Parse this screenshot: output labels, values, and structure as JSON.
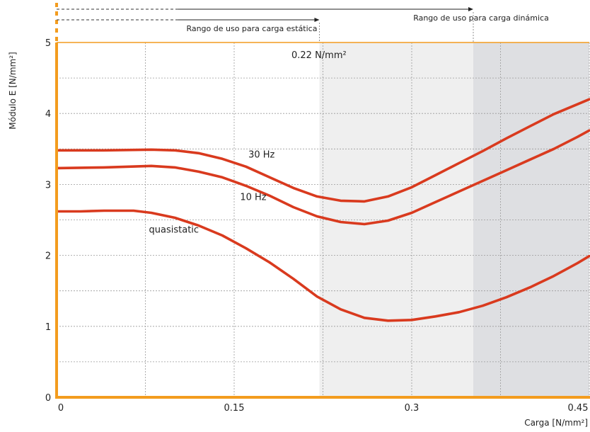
{
  "chart_data": {
    "type": "line",
    "xlabel": "Carga  [N/mm²]",
    "ylabel": "Módulo E [N/mm²]",
    "xlim": [
      0,
      0.45
    ],
    "ylim": [
      0,
      5
    ],
    "x_ticks": [
      {
        "value": 0,
        "label": "0"
      },
      {
        "value": 0.15,
        "label": "0.15"
      },
      {
        "value": 0.3,
        "label": "0.3"
      },
      {
        "value": 0.45,
        "label": "0.45"
      }
    ],
    "y_ticks": [
      {
        "value": 0,
        "label": "0"
      },
      {
        "value": 1,
        "label": "1"
      },
      {
        "value": 2,
        "label": "2"
      },
      {
        "value": 3,
        "label": "3"
      },
      {
        "value": 4,
        "label": "4"
      },
      {
        "value": 5,
        "label": "5"
      }
    ],
    "grid": true,
    "series": [
      {
        "name": "30 Hz",
        "color": "#d93a1e",
        "points": [
          [
            0,
            3.48
          ],
          [
            0.04,
            3.48
          ],
          [
            0.08,
            3.49
          ],
          [
            0.1,
            3.48
          ],
          [
            0.12,
            3.44
          ],
          [
            0.14,
            3.36
          ],
          [
            0.16,
            3.25
          ],
          [
            0.18,
            3.1
          ],
          [
            0.2,
            2.95
          ],
          [
            0.22,
            2.83
          ],
          [
            0.24,
            2.77
          ],
          [
            0.26,
            2.76
          ],
          [
            0.28,
            2.83
          ],
          [
            0.3,
            2.96
          ],
          [
            0.32,
            3.13
          ],
          [
            0.34,
            3.3
          ],
          [
            0.36,
            3.47
          ],
          [
            0.38,
            3.65
          ],
          [
            0.4,
            3.82
          ],
          [
            0.42,
            3.99
          ],
          [
            0.44,
            4.13
          ],
          [
            0.45,
            4.2
          ]
        ]
      },
      {
        "name": "10 Hz",
        "color": "#d93a1e",
        "points": [
          [
            0,
            3.23
          ],
          [
            0.04,
            3.24
          ],
          [
            0.08,
            3.26
          ],
          [
            0.1,
            3.24
          ],
          [
            0.12,
            3.18
          ],
          [
            0.14,
            3.1
          ],
          [
            0.16,
            2.98
          ],
          [
            0.18,
            2.84
          ],
          [
            0.2,
            2.68
          ],
          [
            0.22,
            2.55
          ],
          [
            0.24,
            2.47
          ],
          [
            0.26,
            2.44
          ],
          [
            0.28,
            2.49
          ],
          [
            0.3,
            2.6
          ],
          [
            0.32,
            2.75
          ],
          [
            0.34,
            2.9
          ],
          [
            0.36,
            3.05
          ],
          [
            0.38,
            3.2
          ],
          [
            0.4,
            3.35
          ],
          [
            0.42,
            3.5
          ],
          [
            0.44,
            3.67
          ],
          [
            0.45,
            3.76
          ]
        ]
      },
      {
        "name": "quasistatic",
        "color": "#d93a1e",
        "points": [
          [
            0,
            2.62
          ],
          [
            0.02,
            2.62
          ],
          [
            0.04,
            2.63
          ],
          [
            0.065,
            2.63
          ],
          [
            0.08,
            2.6
          ],
          [
            0.1,
            2.53
          ],
          [
            0.12,
            2.42
          ],
          [
            0.14,
            2.28
          ],
          [
            0.16,
            2.1
          ],
          [
            0.18,
            1.9
          ],
          [
            0.2,
            1.67
          ],
          [
            0.22,
            1.42
          ],
          [
            0.24,
            1.24
          ],
          [
            0.26,
            1.12
          ],
          [
            0.28,
            1.08
          ],
          [
            0.3,
            1.09
          ],
          [
            0.32,
            1.14
          ],
          [
            0.34,
            1.2
          ],
          [
            0.36,
            1.29
          ],
          [
            0.38,
            1.41
          ],
          [
            0.4,
            1.55
          ],
          [
            0.42,
            1.71
          ],
          [
            0.44,
            1.89
          ],
          [
            0.45,
            1.99
          ]
        ]
      }
    ],
    "series_labels": [
      {
        "text": "30 Hz",
        "x": 0.162,
        "y": 3.38
      },
      {
        "text": "10 Hz",
        "x": 0.155,
        "y": 2.78
      },
      {
        "text": "quasistatic",
        "x": 0.078,
        "y": 2.32
      }
    ],
    "regions": [
      {
        "from": 0.222,
        "to": 0.352,
        "color": "#efefef"
      },
      {
        "from": 0.352,
        "to": 0.45,
        "color": "#dedfe2"
      }
    ],
    "ranges": [
      {
        "label": "Rango de uso para carga estática",
        "end": 0.222,
        "level": 2
      },
      {
        "label": "Rango de uso para carga dinámica",
        "end": 0.352,
        "level": 1
      }
    ],
    "annotation": {
      "text": "0.22 N/mm²"
    },
    "colors": {
      "axis": "#f39c1e",
      "curve": "#d93a1e",
      "grid": "#9a9a9a"
    }
  }
}
